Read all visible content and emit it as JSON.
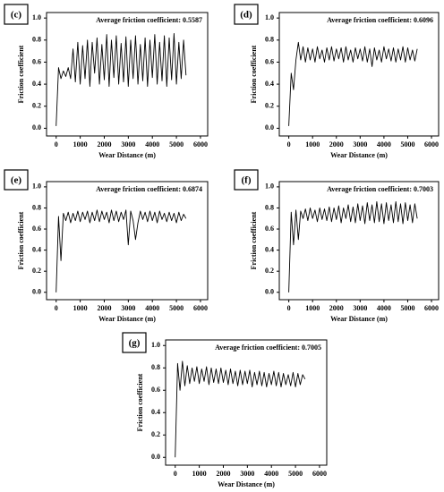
{
  "chart_data": [
    {
      "type": "line",
      "label": "(c)",
      "annotation": "Average friction coefficient: 0.5587",
      "xlabel": "Wear Distance (m)",
      "ylabel": "Friction coefficient",
      "color": "#000000",
      "x": [
        0,
        100,
        200,
        300,
        400,
        500,
        600,
        700,
        800,
        900,
        1000,
        1100,
        1200,
        1300,
        1400,
        1500,
        1600,
        1700,
        1800,
        1900,
        2000,
        2100,
        2200,
        2300,
        2400,
        2500,
        2600,
        2700,
        2800,
        2900,
        3000,
        3100,
        3200,
        3300,
        3400,
        3500,
        3600,
        3700,
        3800,
        3900,
        4000,
        4100,
        4200,
        4300,
        4400,
        4500,
        4600,
        4700,
        4800,
        4900,
        5000,
        5100,
        5200,
        5300,
        5400
      ],
      "values": [
        0.02,
        0.55,
        0.45,
        0.52,
        0.47,
        0.55,
        0.45,
        0.72,
        0.42,
        0.78,
        0.4,
        0.75,
        0.45,
        0.8,
        0.38,
        0.78,
        0.5,
        0.82,
        0.4,
        0.76,
        0.44,
        0.85,
        0.38,
        0.8,
        0.46,
        0.84,
        0.4,
        0.77,
        0.42,
        0.83,
        0.38,
        0.8,
        0.45,
        0.84,
        0.4,
        0.76,
        0.43,
        0.82,
        0.38,
        0.8,
        0.46,
        0.85,
        0.4,
        0.78,
        0.43,
        0.84,
        0.38,
        0.82,
        0.44,
        0.86,
        0.4,
        0.78,
        0.45,
        0.8,
        0.48
      ],
      "xlim": [
        -400,
        6300
      ],
      "ylim": [
        -0.07,
        1.05
      ],
      "xticks": [
        0,
        1000,
        2000,
        3000,
        4000,
        5000,
        6000
      ],
      "yticks": [
        {
          "value": 0,
          "label": "0.0"
        },
        {
          "value": 0.2,
          "label": "0.2"
        },
        {
          "value": 0.4,
          "label": "0.4"
        },
        {
          "value": 0.6,
          "label": "0.6"
        },
        {
          "value": 0.8,
          "label": "0.8"
        },
        {
          "value": 1,
          "label": "1.0"
        }
      ]
    },
    {
      "type": "line",
      "label": "(d)",
      "annotation": "Average friction coefficient: 0.6096",
      "xlabel": "Wear Distance (m)",
      "ylabel": "Friction coefficient",
      "color": "#000000",
      "x": [
        0,
        100,
        200,
        300,
        400,
        500,
        600,
        700,
        800,
        900,
        1000,
        1100,
        1200,
        1300,
        1400,
        1500,
        1600,
        1700,
        1800,
        1900,
        2000,
        2100,
        2200,
        2300,
        2400,
        2500,
        2600,
        2700,
        2800,
        2900,
        3000,
        3100,
        3200,
        3300,
        3400,
        3500,
        3600,
        3700,
        3800,
        3900,
        4000,
        4100,
        4200,
        4300,
        4400,
        4500,
        4600,
        4700,
        4800,
        4900,
        5000,
        5100,
        5200,
        5300,
        5400
      ],
      "values": [
        0.02,
        0.5,
        0.35,
        0.62,
        0.78,
        0.62,
        0.74,
        0.6,
        0.73,
        0.62,
        0.72,
        0.6,
        0.74,
        0.63,
        0.71,
        0.6,
        0.73,
        0.62,
        0.74,
        0.61,
        0.72,
        0.63,
        0.73,
        0.6,
        0.74,
        0.62,
        0.71,
        0.6,
        0.73,
        0.63,
        0.72,
        0.61,
        0.74,
        0.6,
        0.72,
        0.56,
        0.73,
        0.62,
        0.71,
        0.6,
        0.74,
        0.63,
        0.72,
        0.61,
        0.73,
        0.6,
        0.72,
        0.62,
        0.74,
        0.6,
        0.73,
        0.62,
        0.71,
        0.61,
        0.72
      ],
      "xlim": [
        -400,
        6300
      ],
      "ylim": [
        -0.07,
        1.05
      ],
      "xticks": [
        0,
        1000,
        2000,
        3000,
        4000,
        5000,
        6000
      ],
      "yticks": [
        {
          "value": 0,
          "label": "0.0"
        },
        {
          "value": 0.2,
          "label": "0.2"
        },
        {
          "value": 0.4,
          "label": "0.4"
        },
        {
          "value": 0.6,
          "label": "0.6"
        },
        {
          "value": 0.8,
          "label": "0.8"
        },
        {
          "value": 1,
          "label": "1.0"
        }
      ]
    },
    {
      "type": "line",
      "label": "(e)",
      "annotation": "Average friction coefficient: 0.6874",
      "xlabel": "Wear Distance (m)",
      "ylabel": "Friction coefficient",
      "color": "#000000",
      "x": [
        0,
        100,
        200,
        300,
        400,
        500,
        600,
        700,
        800,
        900,
        1000,
        1100,
        1200,
        1300,
        1400,
        1500,
        1600,
        1700,
        1800,
        1900,
        2000,
        2100,
        2200,
        2300,
        2400,
        2500,
        2600,
        2700,
        2800,
        2900,
        3000,
        3100,
        3200,
        3300,
        3400,
        3500,
        3600,
        3700,
        3800,
        3900,
        4000,
        4100,
        4200,
        4300,
        4400,
        4500,
        4600,
        4700,
        4800,
        4900,
        5000,
        5100,
        5200,
        5300,
        5400
      ],
      "values": [
        0.0,
        0.72,
        0.3,
        0.75,
        0.68,
        0.76,
        0.66,
        0.75,
        0.68,
        0.77,
        0.67,
        0.76,
        0.69,
        0.77,
        0.66,
        0.76,
        0.68,
        0.78,
        0.67,
        0.77,
        0.69,
        0.76,
        0.66,
        0.78,
        0.68,
        0.77,
        0.67,
        0.76,
        0.69,
        0.78,
        0.45,
        0.77,
        0.68,
        0.5,
        0.66,
        0.77,
        0.69,
        0.76,
        0.67,
        0.77,
        0.68,
        0.76,
        0.66,
        0.77,
        0.69,
        0.75,
        0.67,
        0.76,
        0.68,
        0.75,
        0.66,
        0.76,
        0.68,
        0.74,
        0.7
      ],
      "xlim": [
        -400,
        6300
      ],
      "ylim": [
        -0.07,
        1.05
      ],
      "xticks": [
        0,
        1000,
        2000,
        3000,
        4000,
        5000,
        6000
      ],
      "yticks": [
        {
          "value": 0,
          "label": "0.0"
        },
        {
          "value": 0.2,
          "label": "0.2"
        },
        {
          "value": 0.4,
          "label": "0.4"
        },
        {
          "value": 0.6,
          "label": "0.6"
        },
        {
          "value": 0.8,
          "label": "0.8"
        },
        {
          "value": 1,
          "label": "1.0"
        }
      ]
    },
    {
      "type": "line",
      "label": "(f)",
      "annotation": "Average friction coefficient: 0.7003",
      "xlabel": "Wear Distance (m)",
      "ylabel": "Friction coefficient",
      "color": "#000000",
      "x": [
        0,
        100,
        200,
        300,
        400,
        500,
        600,
        700,
        800,
        900,
        1000,
        1100,
        1200,
        1300,
        1400,
        1500,
        1600,
        1700,
        1800,
        1900,
        2000,
        2100,
        2200,
        2300,
        2400,
        2500,
        2600,
        2700,
        2800,
        2900,
        3000,
        3100,
        3200,
        3300,
        3400,
        3500,
        3600,
        3700,
        3800,
        3900,
        4000,
        4100,
        4200,
        4300,
        4400,
        4500,
        4600,
        4700,
        4800,
        4900,
        5000,
        5100,
        5200,
        5300,
        5400
      ],
      "values": [
        0.0,
        0.76,
        0.45,
        0.78,
        0.5,
        0.77,
        0.7,
        0.79,
        0.68,
        0.8,
        0.7,
        0.78,
        0.67,
        0.8,
        0.69,
        0.79,
        0.68,
        0.81,
        0.67,
        0.8,
        0.69,
        0.82,
        0.66,
        0.8,
        0.7,
        0.83,
        0.67,
        0.81,
        0.66,
        0.84,
        0.68,
        0.82,
        0.65,
        0.85,
        0.68,
        0.83,
        0.66,
        0.86,
        0.67,
        0.84,
        0.65,
        0.85,
        0.68,
        0.83,
        0.66,
        0.86,
        0.67,
        0.84,
        0.65,
        0.85,
        0.68,
        0.83,
        0.66,
        0.84,
        0.7
      ],
      "xlim": [
        -400,
        6300
      ],
      "ylim": [
        -0.07,
        1.05
      ],
      "xticks": [
        0,
        1000,
        2000,
        3000,
        4000,
        5000,
        6000
      ],
      "yticks": [
        {
          "value": 0,
          "label": "0.0"
        },
        {
          "value": 0.2,
          "label": "0.2"
        },
        {
          "value": 0.4,
          "label": "0.4"
        },
        {
          "value": 0.6,
          "label": "0.6"
        },
        {
          "value": 0.8,
          "label": "0.8"
        },
        {
          "value": 1,
          "label": "1.0"
        }
      ]
    },
    {
      "type": "line",
      "label": "(g)",
      "annotation": "Average friction coefficient: 0.7005",
      "xlabel": "Wear Distance (m)",
      "ylabel": "Friction coefficient",
      "color": "#000000",
      "x": [
        0,
        100,
        200,
        300,
        400,
        500,
        600,
        700,
        800,
        900,
        1000,
        1100,
        1200,
        1300,
        1400,
        1500,
        1600,
        1700,
        1800,
        1900,
        2000,
        2100,
        2200,
        2300,
        2400,
        2500,
        2600,
        2700,
        2800,
        2900,
        3000,
        3100,
        3200,
        3300,
        3400,
        3500,
        3600,
        3700,
        3800,
        3900,
        4000,
        4100,
        4200,
        4300,
        4400,
        4500,
        4600,
        4700,
        4800,
        4900,
        5000,
        5100,
        5200,
        5300,
        5400
      ],
      "values": [
        0.0,
        0.84,
        0.6,
        0.86,
        0.64,
        0.82,
        0.66,
        0.8,
        0.68,
        0.81,
        0.66,
        0.79,
        0.68,
        0.81,
        0.65,
        0.8,
        0.67,
        0.79,
        0.66,
        0.8,
        0.67,
        0.78,
        0.65,
        0.79,
        0.66,
        0.77,
        0.64,
        0.78,
        0.65,
        0.77,
        0.66,
        0.78,
        0.63,
        0.76,
        0.65,
        0.77,
        0.64,
        0.76,
        0.63,
        0.75,
        0.65,
        0.77,
        0.64,
        0.76,
        0.63,
        0.75,
        0.65,
        0.74,
        0.64,
        0.76,
        0.63,
        0.75,
        0.65,
        0.74,
        0.7
      ],
      "xlim": [
        -400,
        6300
      ],
      "ylim": [
        -0.07,
        1.05
      ],
      "xticks": [
        0,
        1000,
        2000,
        3000,
        4000,
        5000,
        6000
      ],
      "yticks": [
        {
          "value": 0,
          "label": "0.0"
        },
        {
          "value": 0.2,
          "label": "0.2"
        },
        {
          "value": 0.4,
          "label": "0.4"
        },
        {
          "value": 0.6,
          "label": "0.6"
        },
        {
          "value": 0.8,
          "label": "0.8"
        },
        {
          "value": 1,
          "label": "1.0"
        }
      ]
    }
  ]
}
